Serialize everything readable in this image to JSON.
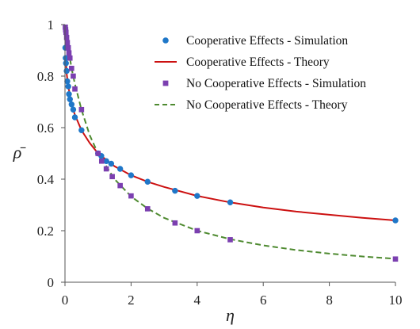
{
  "chart_data": {
    "type": "scatter",
    "xlabel": "η",
    "ylabel": "ρ̄",
    "xlim": [
      0,
      10
    ],
    "ylim": [
      0,
      1
    ],
    "x_ticks": [
      "0",
      "2",
      "4",
      "6",
      "8",
      "10"
    ],
    "y_ticks": [
      "0",
      "0.2",
      "0.4",
      "0.6",
      "0.8",
      "1"
    ],
    "grid": false,
    "legend_position": "top-right",
    "series": [
      {
        "name": "Cooperative Effects - Simulation",
        "kind": "points",
        "marker": "circle",
        "color": "#1f77c8",
        "x": [
          0.01,
          0.02,
          0.03,
          0.05,
          0.07,
          0.1,
          0.12,
          0.15,
          0.2,
          0.25,
          0.3,
          0.5,
          1.0,
          1.1,
          1.25,
          1.4,
          1.67,
          2.0,
          2.5,
          3.33,
          4.0,
          5.0,
          10.0
        ],
        "y": [
          0.91,
          0.87,
          0.85,
          0.82,
          0.78,
          0.76,
          0.73,
          0.71,
          0.69,
          0.67,
          0.64,
          0.59,
          0.5,
          0.49,
          0.47,
          0.46,
          0.44,
          0.415,
          0.39,
          0.355,
          0.335,
          0.31,
          0.24
        ]
      },
      {
        "name": "Cooperative Effects - Theory",
        "kind": "line",
        "style": "solid",
        "color": "#cc1111",
        "x": [
          0.02,
          0.05,
          0.1,
          0.2,
          0.3,
          0.5,
          0.75,
          1.0,
          1.5,
          2.0,
          2.5,
          3.0,
          4.0,
          5.0,
          6.0,
          7.0,
          8.0,
          9.0,
          10.0
        ],
        "y": [
          0.88,
          0.81,
          0.76,
          0.69,
          0.65,
          0.59,
          0.54,
          0.5,
          0.45,
          0.415,
          0.39,
          0.37,
          0.335,
          0.31,
          0.29,
          0.274,
          0.262,
          0.25,
          0.24
        ]
      },
      {
        "name": "No Cooperative Effects - Simulation",
        "kind": "points",
        "marker": "square",
        "color": "#7b3fb0",
        "x": [
          0.01,
          0.02,
          0.03,
          0.05,
          0.07,
          0.1,
          0.12,
          0.15,
          0.2,
          0.25,
          0.3,
          0.5,
          1.0,
          1.11,
          1.25,
          1.43,
          1.67,
          2.0,
          2.5,
          3.33,
          4.0,
          5.0,
          10.0
        ],
        "y": [
          0.99,
          0.98,
          0.97,
          0.95,
          0.93,
          0.91,
          0.89,
          0.87,
          0.83,
          0.8,
          0.75,
          0.67,
          0.5,
          0.47,
          0.44,
          0.41,
          0.375,
          0.335,
          0.285,
          0.23,
          0.2,
          0.165,
          0.09
        ]
      },
      {
        "name": "No Cooperative Effects - Theory",
        "kind": "line",
        "style": "dashed",
        "color": "#4e8a30",
        "x": [
          0.0,
          0.05,
          0.1,
          0.2,
          0.3,
          0.5,
          0.75,
          1.0,
          1.5,
          2.0,
          2.5,
          3.0,
          4.0,
          5.0,
          6.0,
          7.0,
          8.0,
          9.0,
          10.0
        ],
        "y": [
          1.0,
          0.95,
          0.91,
          0.83,
          0.77,
          0.67,
          0.57,
          0.5,
          0.4,
          0.333,
          0.286,
          0.25,
          0.2,
          0.167,
          0.143,
          0.125,
          0.111,
          0.1,
          0.091
        ]
      }
    ]
  }
}
